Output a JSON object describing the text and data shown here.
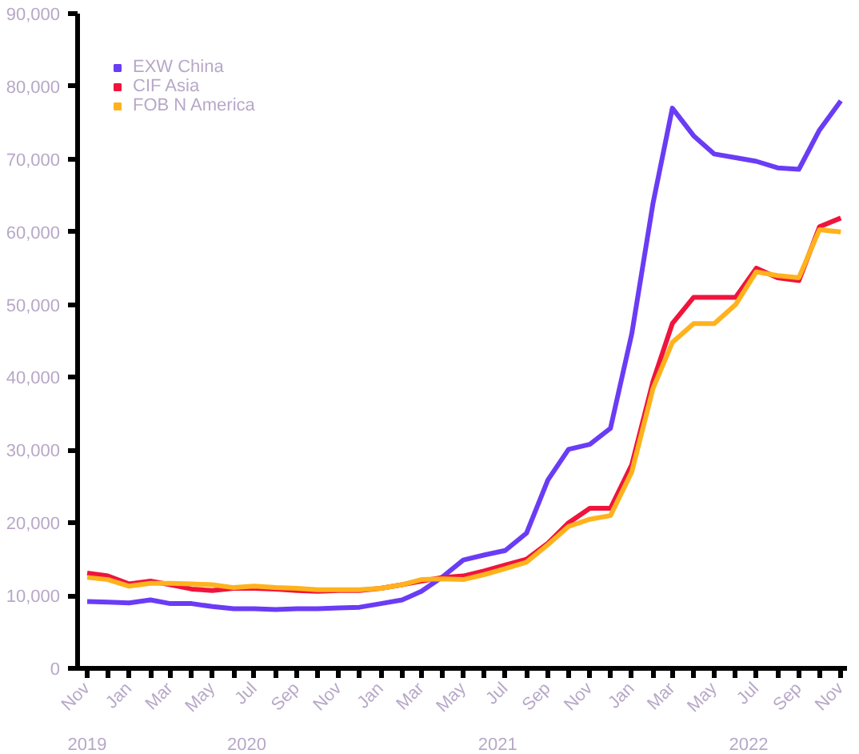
{
  "chart_data": {
    "type": "line",
    "x": [
      "2019-11",
      "2019-12",
      "2020-01",
      "2020-02",
      "2020-03",
      "2020-04",
      "2020-05",
      "2020-06",
      "2020-07",
      "2020-08",
      "2020-09",
      "2020-10",
      "2020-11",
      "2020-12",
      "2021-01",
      "2021-02",
      "2021-03",
      "2021-04",
      "2021-05",
      "2021-06",
      "2021-07",
      "2021-08",
      "2021-09",
      "2021-10",
      "2021-11",
      "2021-12",
      "2022-01",
      "2022-02",
      "2022-03",
      "2022-04",
      "2022-05",
      "2022-06",
      "2022-07",
      "2022-08",
      "2022-09",
      "2022-10",
      "2022-11"
    ],
    "series": [
      {
        "name": "EXW China",
        "color": "#6a3cf5",
        "values": [
          9200,
          9100,
          9000,
          9400,
          8900,
          8900,
          8500,
          8200,
          8200,
          8100,
          8200,
          8200,
          8300,
          8400,
          8900,
          9400,
          10600,
          12600,
          14900,
          15600,
          16200,
          18600,
          25900,
          30100,
          30800,
          33000,
          46000,
          64000,
          77000,
          73200,
          70700,
          70200,
          69700,
          68800,
          68600,
          74000,
          78000
        ]
      },
      {
        "name": "CIF Asia",
        "color": "#f0143c",
        "values": [
          13100,
          12700,
          11600,
          12000,
          11500,
          10900,
          10700,
          11000,
          11000,
          10900,
          10700,
          10600,
          10700,
          10700,
          11000,
          11500,
          12000,
          12500,
          12700,
          13400,
          14200,
          15000,
          17200,
          20000,
          22000,
          22000,
          28000,
          39500,
          47400,
          51000,
          51000,
          51000,
          55000,
          53700,
          53300,
          60700,
          61900
        ]
      },
      {
        "name": "FOB N America",
        "color": "#ffb21c",
        "values": [
          12500,
          12200,
          11300,
          11700,
          11700,
          11600,
          11500,
          11100,
          11300,
          11100,
          11000,
          10800,
          10800,
          10800,
          11000,
          11500,
          12200,
          12300,
          12200,
          12900,
          13700,
          14600,
          17000,
          19500,
          20500,
          21000,
          27000,
          38500,
          44800,
          47400,
          47400,
          50000,
          54500,
          54000,
          53700,
          60300,
          60000
        ]
      }
    ],
    "xlim": [
      "2019-10-18",
      "2022-11-10"
    ],
    "xticks": [
      {
        "value": "2019-11",
        "label": "Nov"
      },
      {
        "value": "2019-12",
        "label": null
      },
      {
        "value": "2020-01",
        "label": "Jan"
      },
      {
        "value": "2020-02",
        "label": null
      },
      {
        "value": "2020-03",
        "label": "Mar"
      },
      {
        "value": "2020-04",
        "label": null
      },
      {
        "value": "2020-05",
        "label": "May"
      },
      {
        "value": "2020-06",
        "label": null
      },
      {
        "value": "2020-07",
        "label": "Jul"
      },
      {
        "value": "2020-08",
        "label": null
      },
      {
        "value": "2020-09",
        "label": "Sep"
      },
      {
        "value": "2020-10",
        "label": null
      },
      {
        "value": "2020-11",
        "label": "Nov"
      },
      {
        "value": "2020-12",
        "label": null
      },
      {
        "value": "2021-01",
        "label": "Jan"
      },
      {
        "value": "2021-02",
        "label": null
      },
      {
        "value": "2021-03",
        "label": "Mar"
      },
      {
        "value": "2021-04",
        "label": null
      },
      {
        "value": "2021-05",
        "label": "May"
      },
      {
        "value": "2021-06",
        "label": null
      },
      {
        "value": "2021-07",
        "label": "Jul"
      },
      {
        "value": "2021-08",
        "label": null
      },
      {
        "value": "2021-09",
        "label": "Sep"
      },
      {
        "value": "2021-10",
        "label": null
      },
      {
        "value": "2021-11",
        "label": "Nov"
      },
      {
        "value": "2021-12",
        "label": null
      },
      {
        "value": "2022-01",
        "label": "Jan"
      },
      {
        "value": "2022-02",
        "label": null
      },
      {
        "value": "2022-03",
        "label": "Mar"
      },
      {
        "value": "2022-04",
        "label": null
      },
      {
        "value": "2022-05",
        "label": "May"
      },
      {
        "value": "2022-06",
        "label": null
      },
      {
        "value": "2022-07",
        "label": "Jul"
      },
      {
        "value": "2022-08",
        "label": null
      },
      {
        "value": "2022-09",
        "label": "Sep"
      },
      {
        "value": "2022-10",
        "label": null
      },
      {
        "value": "2022-11",
        "label": "Nov"
      }
    ],
    "ylim": [
      0,
      90000
    ],
    "yticks": [
      0,
      {
        "value": 10000,
        "label": "10,000"
      },
      {
        "value": 20000,
        "label": "20,000"
      },
      {
        "value": 30000,
        "label": "30,000"
      },
      {
        "value": 40000,
        "label": "40,000"
      },
      {
        "value": 50000,
        "label": "50,000"
      },
      {
        "value": 60000,
        "label": "60,000"
      },
      {
        "value": 70000,
        "label": "70,000"
      },
      {
        "value": 80000,
        "label": "80,000"
      },
      {
        "value": 90000,
        "label": "90,000"
      }
    ],
    "annotations": [
      "2019",
      "2020",
      "2021",
      "2022"
    ],
    "grid": false,
    "legend": "top left",
    "marker": "none",
    "line_style": "solid"
  }
}
